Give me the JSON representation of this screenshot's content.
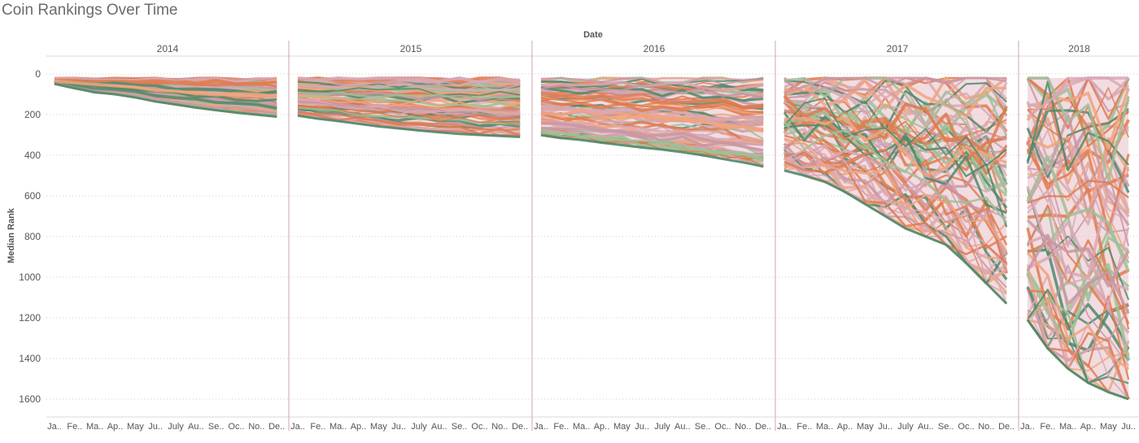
{
  "title": "Coin Rankings Over Time",
  "chart_data": {
    "type": "line",
    "title": "Coin Rankings Over Time",
    "column_header": "Date",
    "ylabel": "Median Rank",
    "ylim": [
      -50,
      1650
    ],
    "y_reversed": true,
    "y_ticks": [
      0,
      200,
      400,
      600,
      800,
      1000,
      1200,
      1400,
      1600
    ],
    "grid": true,
    "panels": [
      {
        "year": "2014",
        "months": [
          "Ja..",
          "Fe..",
          "Ma..",
          "Ap..",
          "May",
          "Ju..",
          "July",
          "Au..",
          "Se..",
          "Oc..",
          "No..",
          "De.."
        ],
        "envelope_top": [
          20,
          20,
          20,
          20,
          20,
          20,
          20,
          20,
          20,
          20,
          20,
          20
        ],
        "envelope_bottom": [
          48,
          70,
          90,
          100,
          115,
          135,
          150,
          165,
          178,
          190,
          200,
          210
        ]
      },
      {
        "year": "2015",
        "months": [
          "Ja..",
          "Fe..",
          "Ma..",
          "Ap..",
          "May",
          "Ju..",
          "July",
          "Au..",
          "Se..",
          "Oc..",
          "No..",
          "De.."
        ],
        "envelope_top": [
          20,
          20,
          20,
          20,
          20,
          20,
          20,
          20,
          20,
          20,
          20,
          20
        ],
        "envelope_bottom": [
          205,
          220,
          232,
          245,
          258,
          268,
          278,
          287,
          295,
          300,
          305,
          310
        ]
      },
      {
        "year": "2016",
        "months": [
          "Ja..",
          "Fe..",
          "Ma..",
          "Ap..",
          "May",
          "Ju..",
          "July",
          "Au..",
          "Se..",
          "Oc..",
          "No..",
          "De.."
        ],
        "envelope_top": [
          20,
          20,
          20,
          20,
          20,
          20,
          20,
          20,
          20,
          20,
          20,
          20
        ],
        "envelope_bottom": [
          300,
          315,
          325,
          338,
          350,
          362,
          372,
          385,
          400,
          418,
          435,
          455
        ]
      },
      {
        "year": "2017",
        "months": [
          "Ja..",
          "Fe..",
          "Ma..",
          "Ap..",
          "May",
          "Ju..",
          "July",
          "Au..",
          "Se..",
          "Oc..",
          "No..",
          "De.."
        ],
        "envelope_top": [
          20,
          20,
          20,
          20,
          20,
          20,
          20,
          20,
          20,
          20,
          20,
          20
        ],
        "envelope_bottom": [
          475,
          500,
          530,
          580,
          640,
          700,
          760,
          800,
          840,
          930,
          1030,
          1130
        ]
      },
      {
        "year": "2018",
        "months": [
          "Ja..",
          "Fe..",
          "Ma..",
          "Ap..",
          "May",
          "Ju.."
        ],
        "envelope_top": [
          20,
          20,
          20,
          20,
          20,
          20
        ],
        "envelope_bottom": [
          1210,
          1350,
          1450,
          1520,
          1565,
          1600
        ]
      }
    ]
  },
  "colors": {
    "green_dark": "#4e8a6a",
    "green_light": "#9fbf95",
    "orange": "#e07b4f",
    "salmon": "#f0a47e",
    "pink": "#d9a8b4",
    "mauve": "#c996a5",
    "grid": "#cfcfcf",
    "panel_divider": "#d2a3b0"
  }
}
